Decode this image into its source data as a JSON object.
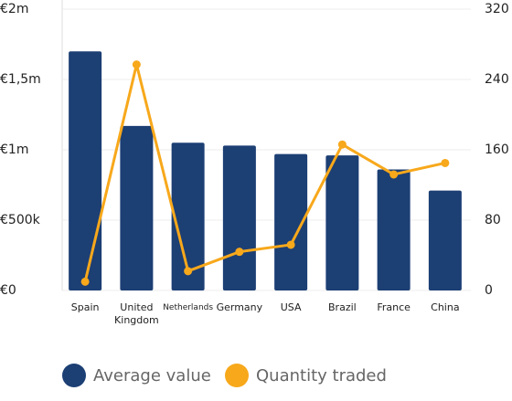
{
  "chart_data": {
    "type": "bar",
    "categories": [
      "Spain",
      "United Kingdom",
      "Netherlands",
      "Germany",
      "USA",
      "Brazil",
      "France",
      "China"
    ],
    "series": [
      {
        "name": "Average value",
        "color": "#1c3f74",
        "type": "bar",
        "values": [
          1700000,
          1170000,
          1050000,
          1030000,
          970000,
          960000,
          860000,
          710000
        ]
      },
      {
        "name": "Quantity traded",
        "color": "#f7a81b",
        "type": "line",
        "axis": "y2",
        "values": [
          10,
          257,
          22,
          44,
          52,
          166,
          132,
          145
        ]
      }
    ],
    "ylim": [
      0,
      2000000
    ],
    "yticks": [
      {
        "value": 0,
        "label": "€0"
      },
      {
        "value": 500000,
        "label": "€500k"
      },
      {
        "value": 1000000,
        "label": "€1m"
      },
      {
        "value": 1500000,
        "label": "€1,5m"
      },
      {
        "value": 2000000,
        "label": "€2m"
      }
    ],
    "y2lim": [
      0,
      320
    ],
    "y2ticks": [
      0,
      80,
      160,
      240,
      320
    ],
    "grid": true
  }
}
